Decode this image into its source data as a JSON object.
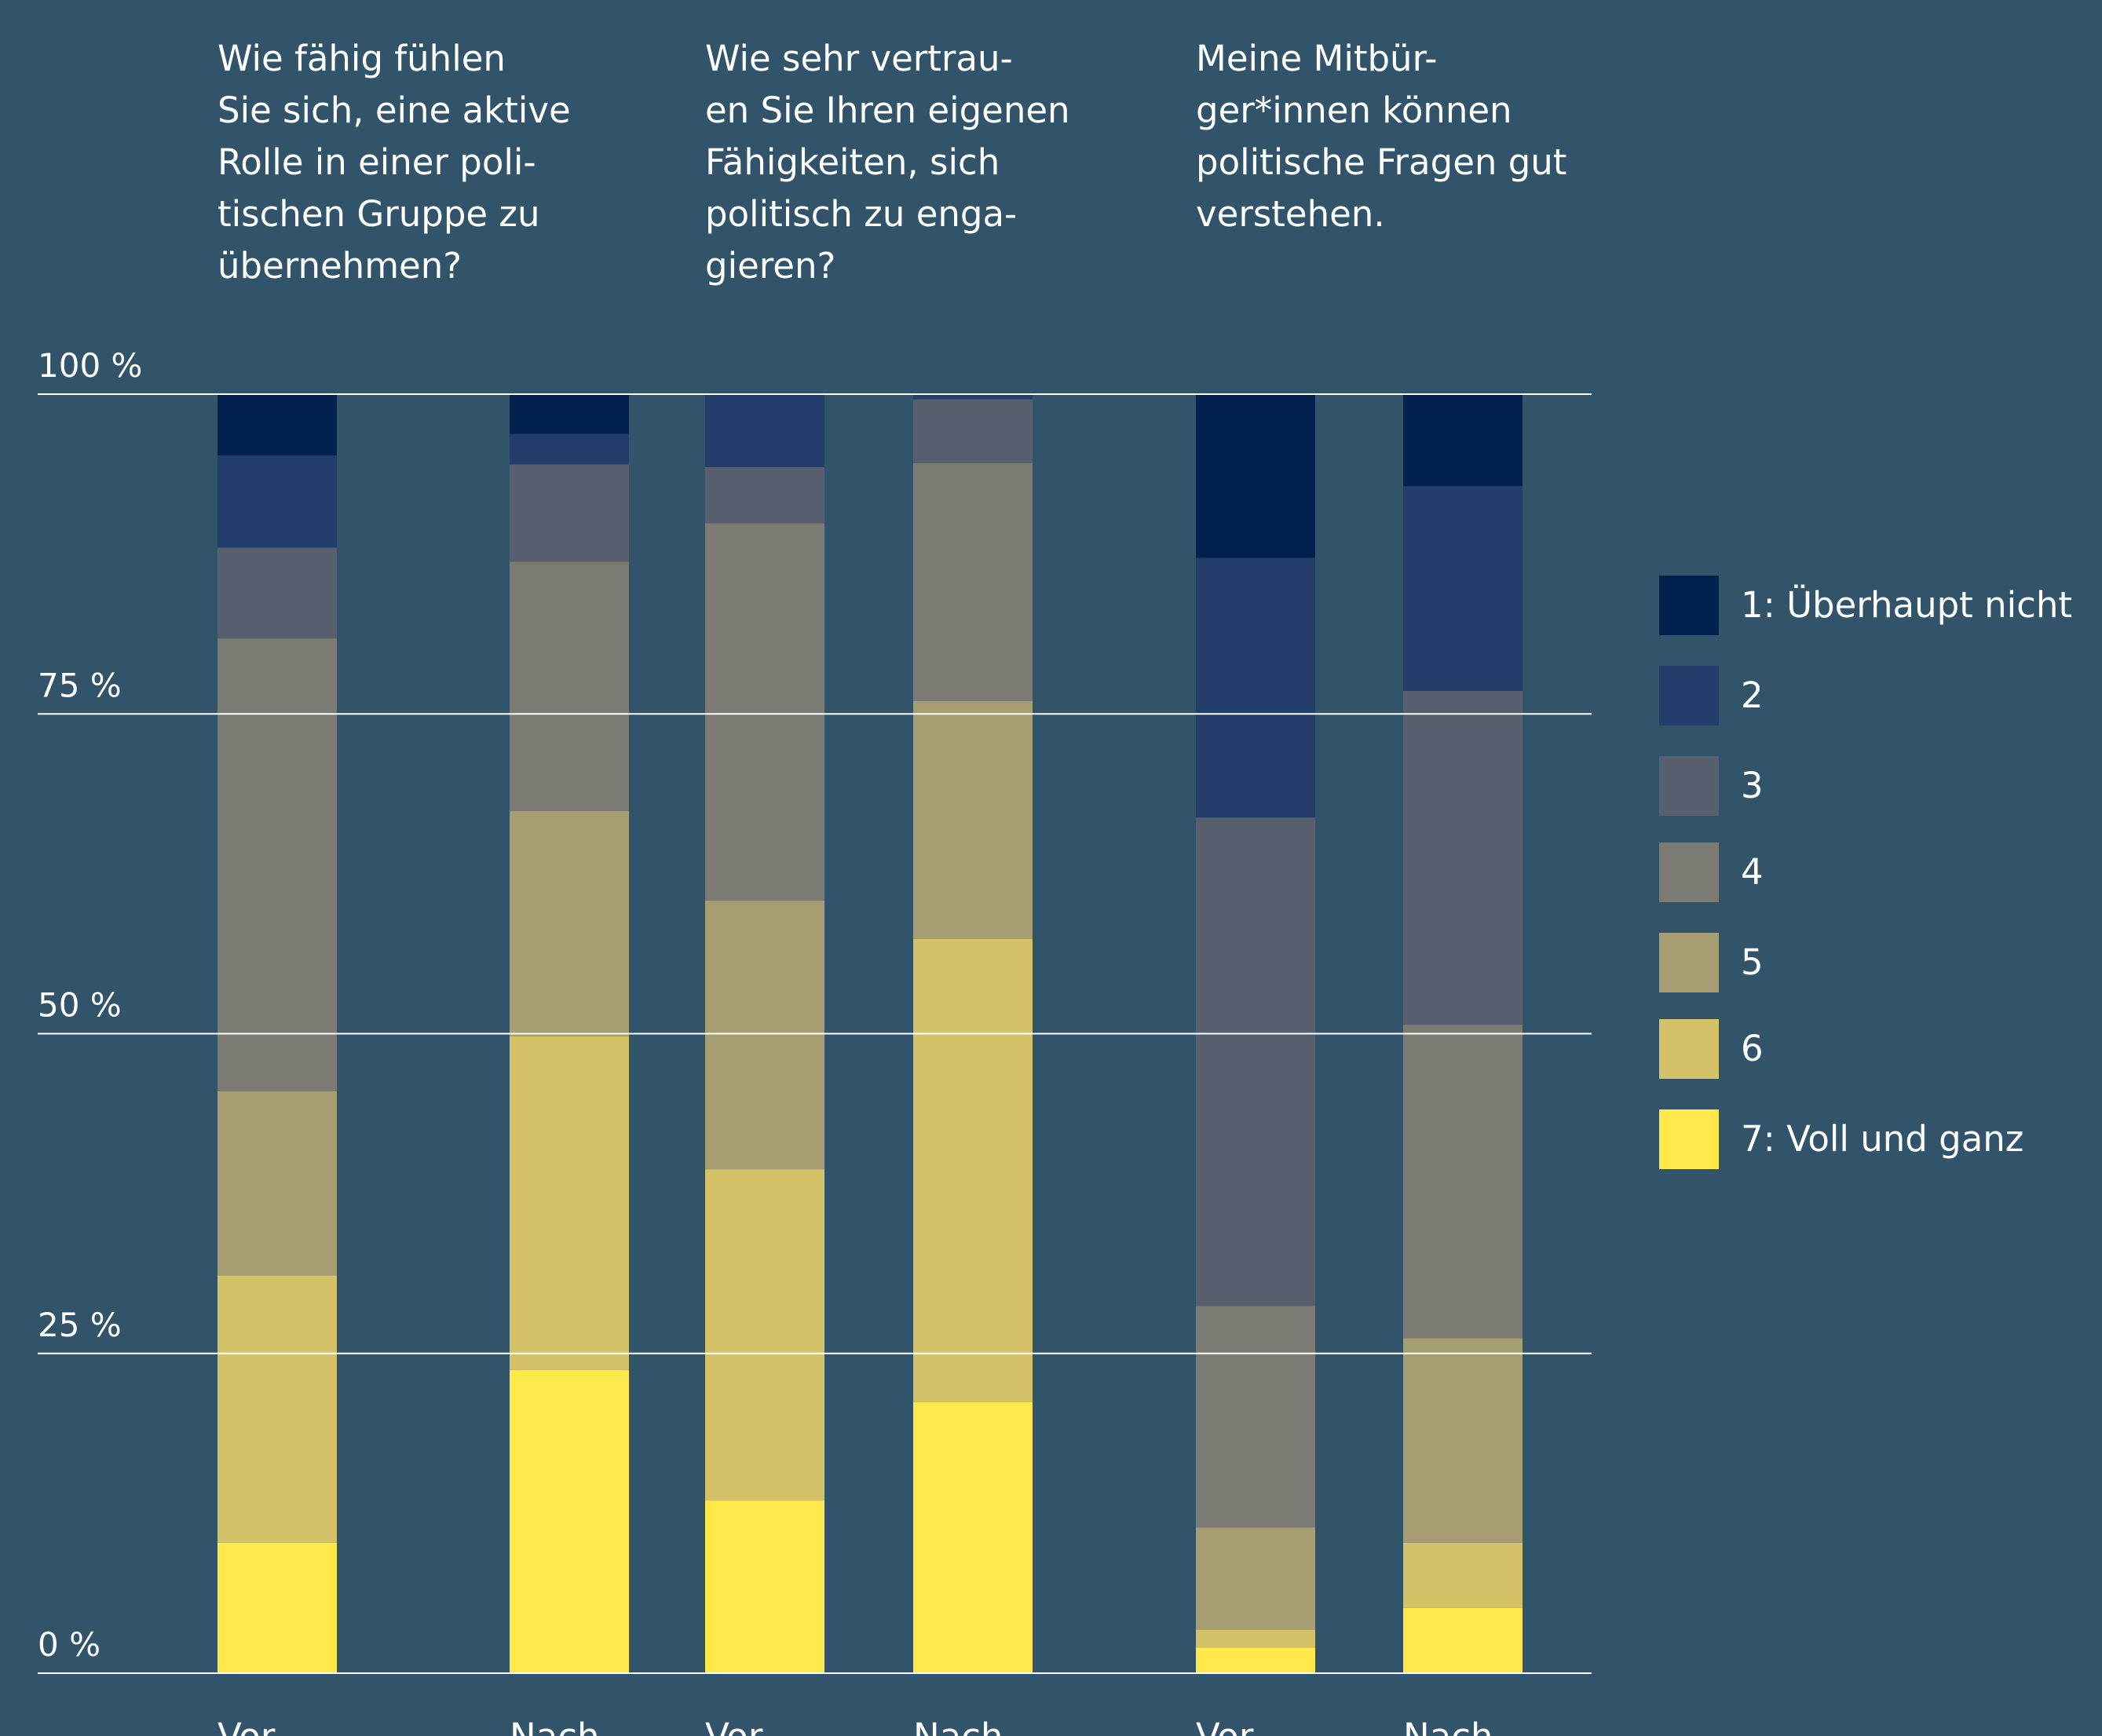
{
  "chart_data": {
    "type": "bar",
    "stacked": true,
    "y_tick_labels": [
      "0 %",
      "25 %",
      "50 %",
      "75 %",
      "100 %"
    ],
    "y_ticks": [
      0,
      25,
      50,
      75,
      100
    ],
    "ylim": [
      0,
      100
    ],
    "grid": true,
    "legend_position": "right",
    "legend": [
      {
        "label": "1: Überhaupt nicht",
        "color": "#00214e"
      },
      {
        "label": "2",
        "color": "#243e6b"
      },
      {
        "label": "3",
        "color": "#575e6e"
      },
      {
        "label": "4",
        "color": "#7c7b73"
      },
      {
        "label": "5",
        "color": "#a69d73"
      },
      {
        "label": "6",
        "color": "#d4c268"
      },
      {
        "label": "7: Voll und ganz",
        "color": "#ffe94a"
      }
    ],
    "groups": [
      {
        "question": "Wie fähig fühlen\nSie sich, eine aktive\nRolle in einer poli-\ntischen Gruppe zu\nübernehmen?",
        "bars": [
          {
            "label": "Vor",
            "segments": [
              10.2,
              20.9,
              14.4,
              35.4,
              7.1,
              7.2,
              4.8
            ]
          },
          {
            "label": "Nach",
            "segments": [
              23.7,
              26.1,
              17.6,
              19.5,
              7.6,
              2.4,
              3.1
            ]
          }
        ]
      },
      {
        "question": "Wie sehr vertrau-\nen Sie Ihren eigenen\nFähigkeiten, sich\npolitisch zu enga-\ngieren?",
        "bars": [
          {
            "label": "Vor",
            "segments": [
              13.5,
              25.9,
              21.0,
              29.5,
              4.4,
              5.7,
              0
            ]
          },
          {
            "label": "Nach",
            "segments": [
              21.2,
              36.2,
              18.6,
              18.6,
              5.0,
              0.4,
              0
            ]
          }
        ]
      },
      {
        "question": "Meine Mitbür-\nger*innen können\npolitische Fragen gut\nverstehen.",
        "bars": [
          {
            "label": "Vor",
            "segments": [
              2.0,
              1.4,
              8.0,
              17.3,
              38.2,
              20.3,
              12.8
            ]
          },
          {
            "label": "Nach",
            "segments": [
              5.1,
              5.1,
              16.0,
              24.5,
              26.1,
              16.0,
              7.2
            ]
          }
        ]
      }
    ]
  }
}
